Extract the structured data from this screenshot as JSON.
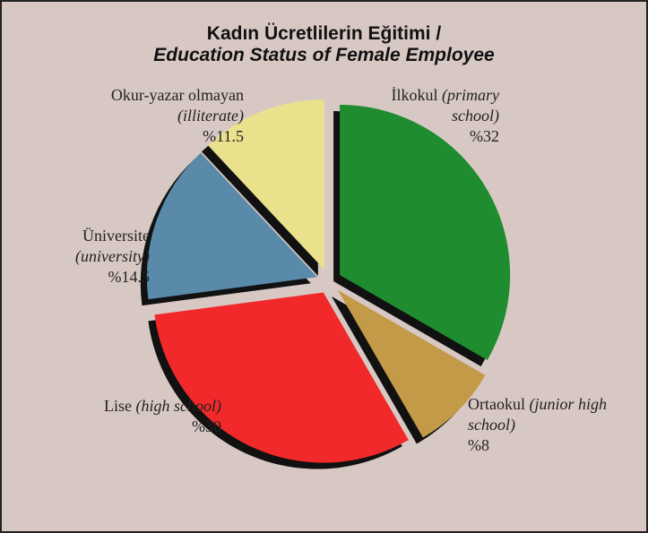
{
  "chart_data": {
    "type": "pie",
    "title": "Kadın Ücretlilerin Eğitimi /",
    "subtitle": "Education Status of Female Employee",
    "categories": [
      "İlkokul",
      "Ortaokul",
      "Lise",
      "Üniversite",
      "Okur-yazar olmayan"
    ],
    "category_translations": [
      "(primary school)",
      "(junior high school)",
      "(high school)",
      "(university)",
      "(illiterate)"
    ],
    "values": [
      32,
      8,
      30,
      14.5,
      11.5
    ],
    "value_labels": [
      "%32",
      "%8",
      "%30",
      "%14.5",
      "%11.5"
    ],
    "colors": [
      "#1e8c2f",
      "#c39a48",
      "#f1292a",
      "#5a8aaa",
      "#e9e18c"
    ]
  }
}
